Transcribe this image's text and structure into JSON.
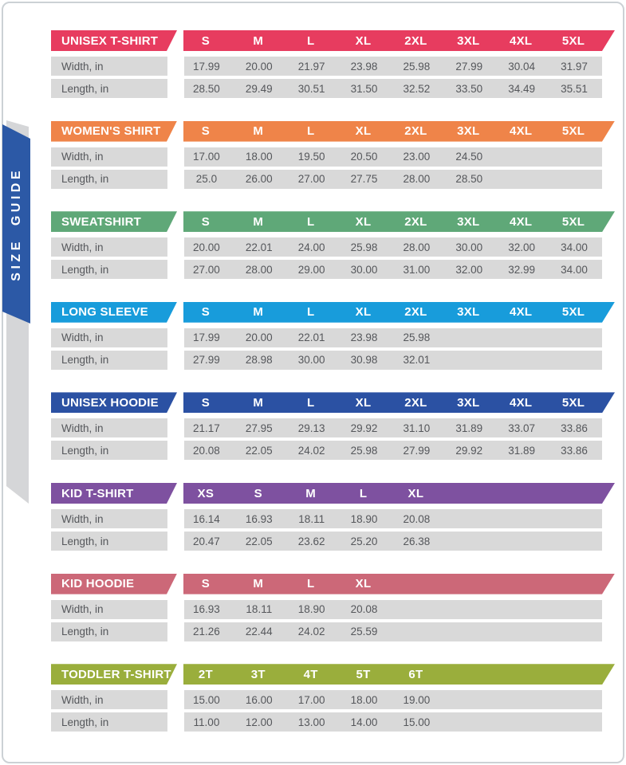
{
  "sidebar": {
    "label": "SIZE GUIDE",
    "banner_color": "#2c59a6",
    "ribbon_color": "#d5d6d8"
  },
  "row_labels": {
    "width": "Width, in",
    "length": "Length, in"
  },
  "row_background": "#d9d9d9",
  "tables": [
    {
      "name": "UNISEX T-SHIRT",
      "color": "#e73c5f",
      "sizes": [
        "S",
        "M",
        "L",
        "XL",
        "2XL",
        "3XL",
        "4XL",
        "5XL"
      ],
      "width": [
        "17.99",
        "20.00",
        "21.97",
        "23.98",
        "25.98",
        "27.99",
        "30.04",
        "31.97"
      ],
      "length": [
        "28.50",
        "29.49",
        "30.51",
        "31.50",
        "32.52",
        "33.50",
        "34.49",
        "35.51"
      ]
    },
    {
      "name": "WOMEN'S SHIRT",
      "color": "#ef8449",
      "sizes": [
        "S",
        "M",
        "L",
        "XL",
        "2XL",
        "3XL",
        "4XL",
        "5XL"
      ],
      "width": [
        "17.00",
        "18.00",
        "19.50",
        "20.50",
        "23.00",
        "24.50",
        "",
        ""
      ],
      "length": [
        "25.0",
        "26.00",
        "27.00",
        "27.75",
        "28.00",
        "28.50",
        "",
        ""
      ]
    },
    {
      "name": "SWEATSHIRT",
      "color": "#5fa878",
      "sizes": [
        "S",
        "M",
        "L",
        "XL",
        "2XL",
        "3XL",
        "4XL",
        "5XL"
      ],
      "width": [
        "20.00",
        "22.01",
        "24.00",
        "25.98",
        "28.00",
        "30.00",
        "32.00",
        "34.00"
      ],
      "length": [
        "27.00",
        "28.00",
        "29.00",
        "30.00",
        "31.00",
        "32.00",
        "32.99",
        "34.00"
      ]
    },
    {
      "name": "LONG SLEEVE",
      "color": "#189cdb",
      "sizes": [
        "S",
        "M",
        "L",
        "XL",
        "2XL",
        "3XL",
        "4XL",
        "5XL"
      ],
      "width": [
        "17.99",
        "20.00",
        "22.01",
        "23.98",
        "25.98",
        "",
        "",
        ""
      ],
      "length": [
        "27.99",
        "28.98",
        "30.00",
        "30.98",
        "32.01",
        "",
        "",
        ""
      ]
    },
    {
      "name": "UNISEX HOODIE",
      "color": "#2b51a3",
      "sizes": [
        "S",
        "M",
        "L",
        "XL",
        "2XL",
        "3XL",
        "4XL",
        "5XL"
      ],
      "width": [
        "21.17",
        "27.95",
        "29.13",
        "29.92",
        "31.10",
        "31.89",
        "33.07",
        "33.86"
      ],
      "length": [
        "20.08",
        "22.05",
        "24.02",
        "25.98",
        "27.99",
        "29.92",
        "31.89",
        "33.86"
      ]
    },
    {
      "name": "KID T-SHIRT",
      "color": "#7e51a0",
      "sizes": [
        "XS",
        "S",
        "M",
        "L",
        "XL"
      ],
      "width": [
        "16.14",
        "16.93",
        "18.11",
        "18.90",
        "20.08"
      ],
      "length": [
        "20.47",
        "22.05",
        "23.62",
        "25.20",
        "26.38"
      ]
    },
    {
      "name": "KID HOODIE",
      "color": "#cc6878",
      "sizes": [
        "S",
        "M",
        "L",
        "XL"
      ],
      "width": [
        "16.93",
        "18.11",
        "18.90",
        "20.08"
      ],
      "length": [
        "21.26",
        "22.44",
        "24.02",
        "25.59"
      ]
    },
    {
      "name": "TODDLER T-SHIRT",
      "color": "#9aae3c",
      "sizes": [
        "2T",
        "3T",
        "4T",
        "5T",
        "6T"
      ],
      "width": [
        "15.00",
        "16.00",
        "17.00",
        "18.00",
        "19.00"
      ],
      "length": [
        "11.00",
        "12.00",
        "13.00",
        "14.00",
        "15.00"
      ]
    }
  ]
}
